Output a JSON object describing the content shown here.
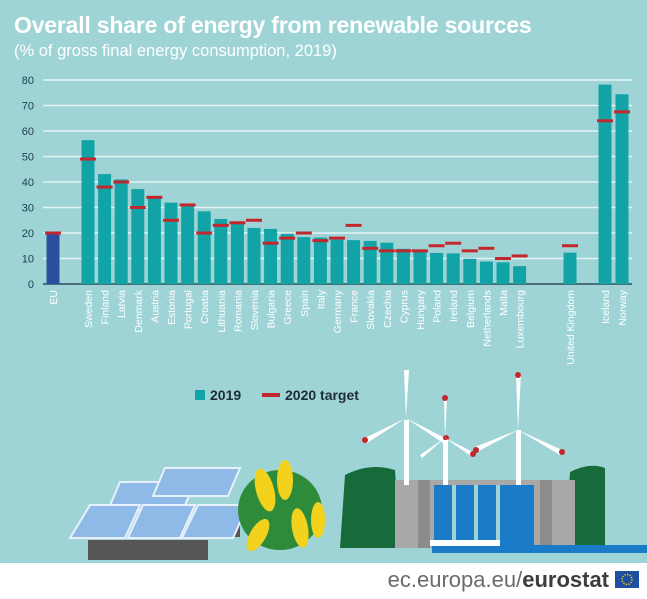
{
  "title": "Overall share of energy from renewable sources",
  "subtitle": "(% of gross final energy consumption, 2019)",
  "chart_data": {
    "type": "bar",
    "categories": [
      "EU",
      "Sweden",
      "Finland",
      "Latvia",
      "Denmark",
      "Austria",
      "Estonia",
      "Portugal",
      "Croatia",
      "Lithuania",
      "Romania",
      "Slovenia",
      "Bulgaria",
      "Greece",
      "Spain",
      "Italy",
      "Germany",
      "France",
      "Slovakia",
      "Czechia",
      "Cyprus",
      "Hungary",
      "Poland",
      "Ireland",
      "Belgium",
      "Netherlands",
      "Malta",
      "Luxembourg",
      "United Kingdom",
      "Iceland",
      "Norway"
    ],
    "series": [
      {
        "name": "2019",
        "values": [
          19.7,
          56.4,
          43.1,
          41.0,
          37.2,
          33.6,
          31.9,
          30.6,
          28.5,
          25.5,
          24.3,
          22.0,
          21.6,
          19.7,
          18.4,
          18.2,
          17.4,
          17.2,
          16.9,
          16.2,
          13.8,
          12.6,
          12.2,
          12.0,
          9.9,
          8.8,
          8.5,
          7.0,
          12.3,
          78.2,
          74.4
        ]
      },
      {
        "name": "2020 target",
        "values": [
          20,
          49,
          38,
          40,
          30,
          34,
          25,
          31,
          20,
          23,
          24,
          25,
          16,
          18,
          20,
          17,
          18,
          23,
          14,
          13,
          13,
          13,
          15,
          16,
          13,
          14,
          10,
          11,
          15,
          64,
          67.5
        ]
      }
    ],
    "yticks": [
      0,
      10,
      20,
      30,
      40,
      50,
      60,
      70,
      80
    ],
    "ylim": [
      0,
      80
    ],
    "grid": true,
    "legend": "bottom-center",
    "colors": {
      "bar": "#11a3a6",
      "eu_bar": "#2b4f9e",
      "target": "#c1272d",
      "background": "#9fd4d6"
    }
  },
  "footer": {
    "url_prefix": "ec.europa.eu/",
    "url_brand": "eurostat"
  }
}
